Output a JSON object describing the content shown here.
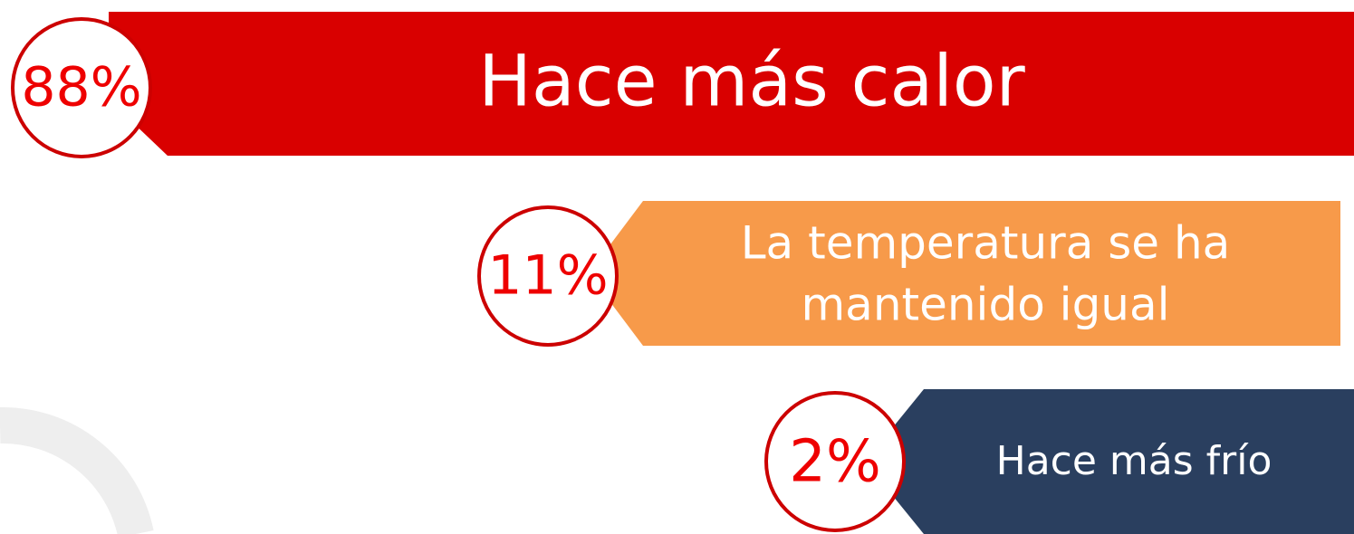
{
  "items": [
    {
      "percent": "88%",
      "label_lines": [
        "Hace más calor"
      ]
    },
    {
      "percent": "11%",
      "label_lines": [
        "La temperatura se ha",
        "mantenido igual"
      ]
    },
    {
      "percent": "2%",
      "label_lines": [
        "Hace más frío"
      ]
    }
  ]
}
